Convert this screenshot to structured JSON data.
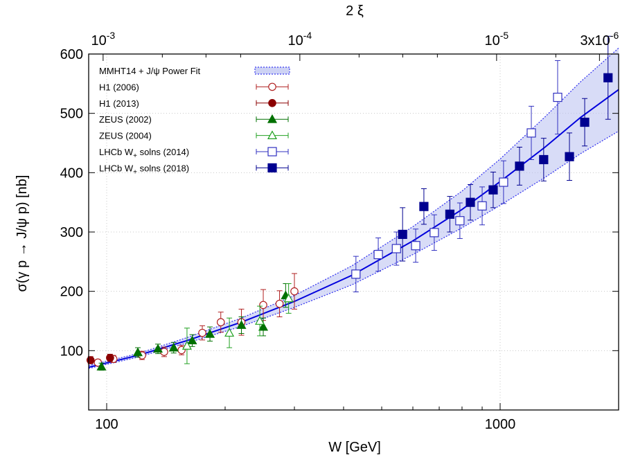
{
  "chart_data": {
    "type": "scatter",
    "xlabel": "W [GeV]",
    "ylabel": "σ(γ p → J/ψ p) [nb]",
    "x2label": "2 ξ",
    "xscale": "log",
    "xlim": [
      90,
      2000
    ],
    "ylim": [
      0,
      600
    ],
    "grid": true,
    "legend_position": "top-left",
    "x_ticks": [
      "100",
      "1000"
    ],
    "y_ticks": [
      "100",
      "200",
      "300",
      "400",
      "500",
      "600"
    ],
    "x2_ticks": [
      {
        "label": "10-3",
        "base": "10",
        "exp": "-3",
        "xi": 0.001
      },
      {
        "label": "10-4",
        "base": "10",
        "exp": "-4",
        "xi": 0.0001
      },
      {
        "label": "10-5",
        "base": "10",
        "exp": "-5",
        "xi": 1e-05
      },
      {
        "label": "3x10-6",
        "base": "3x10",
        "exp": "-6",
        "xi": 3e-06
      }
    ],
    "fit": {
      "name": "MMHT14 + J/ψ Power Fit",
      "color": "#0000dd",
      "band_fill": "#b8bff0",
      "band_edge": "#3a3af0",
      "x": [
        90,
        120,
        160,
        220,
        300,
        420,
        600,
        800,
        1000,
        1300,
        1600,
        2000
      ],
      "central": [
        72,
        92,
        117,
        148,
        183,
        227,
        285,
        338,
        385,
        443,
        493,
        540
      ],
      "lower": [
        70,
        89,
        113,
        141,
        173,
        211,
        262,
        307,
        345,
        392,
        432,
        470
      ],
      "upper": [
        75,
        95,
        122,
        155,
        193,
        243,
        309,
        369,
        423,
        494,
        553,
        610
      ]
    },
    "series": [
      {
        "name": "H1 (2006)",
        "marker": "circle-open",
        "color": "#b02020",
        "points": [
          {
            "x": 95,
            "y": 80,
            "err": 5
          },
          {
            "x": 104,
            "y": 86,
            "err": 6
          },
          {
            "x": 123,
            "y": 92,
            "err": 7
          },
          {
            "x": 140,
            "y": 98,
            "err": 8
          },
          {
            "x": 155,
            "y": 101,
            "err": 8
          },
          {
            "x": 175,
            "y": 130,
            "err": 12
          },
          {
            "x": 195,
            "y": 148,
            "err": 17
          },
          {
            "x": 220,
            "y": 148,
            "err": 22
          },
          {
            "x": 250,
            "y": 177,
            "err": 26
          },
          {
            "x": 275,
            "y": 179,
            "err": 22
          },
          {
            "x": 300,
            "y": 200,
            "err": 30
          }
        ]
      },
      {
        "name": "H1 (2013)",
        "marker": "circle-filled",
        "color": "#8b0000",
        "points": [
          {
            "x": 91,
            "y": 84,
            "err": 6
          },
          {
            "x": 102,
            "y": 88,
            "err": 6
          }
        ]
      },
      {
        "name": "ZEUS (2002)",
        "marker": "triangle-filled",
        "color": "#007000",
        "points": [
          {
            "x": 97,
            "y": 73,
            "err": 6
          },
          {
            "x": 120,
            "y": 97,
            "err": 8
          },
          {
            "x": 135,
            "y": 103,
            "err": 8
          },
          {
            "x": 148,
            "y": 105,
            "err": 9
          },
          {
            "x": 165,
            "y": 117,
            "err": 10
          },
          {
            "x": 183,
            "y": 128,
            "err": 12
          },
          {
            "x": 220,
            "y": 143,
            "err": 14
          },
          {
            "x": 250,
            "y": 140,
            "err": 15
          },
          {
            "x": 285,
            "y": 193,
            "err": 20
          }
        ]
      },
      {
        "name": "ZEUS (2004)",
        "marker": "triangle-open",
        "color": "#20a020",
        "points": [
          {
            "x": 160,
            "y": 108,
            "err": 30
          },
          {
            "x": 205,
            "y": 130,
            "err": 25
          },
          {
            "x": 245,
            "y": 150,
            "err": 25
          },
          {
            "x": 290,
            "y": 188,
            "err": 25
          }
        ]
      },
      {
        "name": "LHCb W+ solns (2014)",
        "marker": "square-open",
        "color": "#3030c0",
        "points": [
          {
            "x": 430,
            "y": 229,
            "err": 30
          },
          {
            "x": 490,
            "y": 262,
            "err": 28
          },
          {
            "x": 545,
            "y": 272,
            "err": 28
          },
          {
            "x": 610,
            "y": 277,
            "err": 28
          },
          {
            "x": 680,
            "y": 299,
            "err": 30
          },
          {
            "x": 790,
            "y": 319,
            "err": 30
          },
          {
            "x": 900,
            "y": 344,
            "err": 32
          },
          {
            "x": 1020,
            "y": 384,
            "err": 36
          },
          {
            "x": 1200,
            "y": 467,
            "err": 45
          },
          {
            "x": 1400,
            "y": 527,
            "err": 62
          }
        ]
      },
      {
        "name": "LHCb W+ solns (2018)",
        "marker": "square-filled",
        "color": "#000090",
        "points": [
          {
            "x": 565,
            "y": 296,
            "err": 45
          },
          {
            "x": 640,
            "y": 343,
            "err": 30
          },
          {
            "x": 745,
            "y": 330,
            "err": 30
          },
          {
            "x": 840,
            "y": 350,
            "err": 30
          },
          {
            "x": 960,
            "y": 371,
            "err": 30
          },
          {
            "x": 1120,
            "y": 411,
            "err": 32
          },
          {
            "x": 1290,
            "y": 422,
            "err": 36
          },
          {
            "x": 1500,
            "y": 427,
            "err": 40
          },
          {
            "x": 1640,
            "y": 485,
            "err": 40
          },
          {
            "x": 1880,
            "y": 560,
            "err": 70
          }
        ]
      }
    ]
  }
}
